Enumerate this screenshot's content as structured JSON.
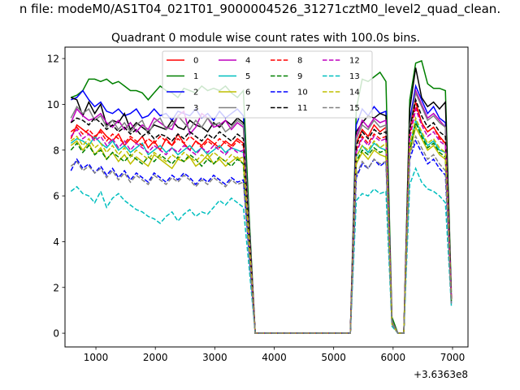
{
  "chart_data": {
    "type": "line",
    "suptitle": "n file: modeM0/AS1T04_021T01_9000004526_31271cztM0_level2_quad_clean.",
    "title": "Quadrant 0 module wise count rates with 100.0s bins.",
    "xlabel": "",
    "ylabel": "",
    "x_offset_label": "+3.6363e8",
    "xlim": [
      480,
      7260
    ],
    "ylim": [
      -0.6,
      12.5
    ],
    "xticks": [
      1000,
      2000,
      3000,
      4000,
      5000,
      6000,
      7000
    ],
    "yticks": [
      0,
      2,
      4,
      6,
      8,
      10,
      12
    ],
    "grid": false,
    "legend": {
      "placement": "top-center",
      "ncol": 4
    },
    "x": [
      580,
      680,
      780,
      880,
      980,
      1080,
      1180,
      1280,
      1380,
      1480,
      1580,
      1680,
      1780,
      1880,
      1980,
      2080,
      2180,
      2280,
      2380,
      2480,
      2580,
      2680,
      2780,
      2880,
      2980,
      3080,
      3180,
      3280,
      3380,
      3480,
      3580,
      3680,
      3780,
      3880,
      3980,
      4080,
      4180,
      4280,
      4380,
      4480,
      4580,
      4680,
      4780,
      4880,
      4980,
      5080,
      5180,
      5280,
      5380,
      5480,
      5580,
      5680,
      5780,
      5880,
      5980,
      6080,
      6180,
      6280,
      6380,
      6480,
      6580,
      6680,
      6780,
      6880,
      6980
    ],
    "series": [
      {
        "name": "0",
        "color": "#ff0000",
        "dash": "solid",
        "values": [
          8.5,
          9.1,
          8.9,
          8.7,
          8.5,
          8.9,
          8.6,
          8.4,
          8.7,
          8.2,
          8.5,
          8.3,
          8.6,
          8.1,
          8.4,
          8.0,
          8.5,
          8.2,
          8.7,
          8.3,
          8.0,
          8.4,
          8.2,
          8.5,
          8.3,
          8.1,
          8.4,
          8.2,
          8.5,
          8.3,
          4.5,
          0,
          0,
          0,
          0,
          0,
          0,
          0,
          0,
          0,
          0,
          0,
          0,
          0,
          0,
          0,
          0,
          0,
          8.3,
          8.9,
          8.6,
          9.1,
          8.8,
          9.0,
          0.4,
          0,
          0,
          9.0,
          10.1,
          9.2,
          8.8,
          9.0,
          8.6,
          8.3,
          1.6
        ]
      },
      {
        "name": "1",
        "color": "#008000",
        "dash": "solid",
        "values": [
          10.3,
          10.4,
          10.6,
          11.1,
          11.1,
          11.0,
          11.1,
          10.9,
          11.0,
          10.8,
          10.6,
          10.6,
          10.5,
          10.2,
          10.5,
          10.8,
          10.6,
          10.5,
          10.3,
          10.7,
          10.6,
          10.5,
          10.8,
          10.6,
          10.7,
          10.6,
          10.8,
          10.5,
          10.3,
          10.6,
          5.0,
          0,
          0,
          0,
          0,
          0,
          0,
          0,
          0,
          0,
          0,
          0,
          0,
          0,
          0,
          0,
          0,
          0,
          9.8,
          11.1,
          11.0,
          11.2,
          11.4,
          11.0,
          0.7,
          0,
          0,
          10.2,
          11.8,
          11.9,
          10.9,
          10.7,
          10.7,
          10.6,
          1.8
        ]
      },
      {
        "name": "2",
        "color": "#0000ff",
        "dash": "solid",
        "values": [
          10.2,
          10.3,
          10.6,
          10.2,
          9.9,
          10.1,
          9.7,
          9.6,
          9.8,
          9.5,
          9.6,
          9.8,
          9.4,
          9.5,
          9.8,
          9.5,
          9.6,
          9.3,
          9.7,
          9.6,
          9.5,
          9.8,
          9.4,
          9.6,
          9.3,
          9.7,
          9.4,
          9.6,
          9.8,
          9.5,
          4.6,
          0,
          0,
          0,
          0,
          0,
          0,
          0,
          0,
          0,
          0,
          0,
          0,
          0,
          0,
          0,
          0,
          0,
          9.1,
          9.8,
          9.5,
          9.9,
          9.6,
          9.7,
          0.5,
          0,
          0,
          9.3,
          10.8,
          10.2,
          9.6,
          9.9,
          9.4,
          9.2,
          1.6
        ]
      },
      {
        "name": "3",
        "color": "#000000",
        "dash": "solid",
        "values": [
          10.3,
          10.2,
          9.5,
          10.1,
          9.6,
          10.0,
          9.1,
          9.3,
          9.2,
          9.6,
          8.9,
          9.2,
          9.0,
          8.8,
          9.1,
          9.0,
          8.9,
          9.3,
          9.0,
          8.9,
          9.3,
          9.1,
          9.0,
          8.8,
          9.2,
          9.0,
          9.3,
          9.1,
          9.4,
          9.2,
          4.6,
          0,
          0,
          0,
          0,
          0,
          0,
          0,
          0,
          0,
          0,
          0,
          0,
          0,
          0,
          0,
          0,
          0,
          8.8,
          9.2,
          9.5,
          9.4,
          9.6,
          9.5,
          0.5,
          0,
          0,
          9.8,
          11.6,
          10.3,
          9.9,
          10.1,
          9.8,
          10.1,
          1.5
        ]
      },
      {
        "name": "4",
        "color": "#bf00bf",
        "dash": "solid",
        "values": [
          9.2,
          9.8,
          9.5,
          9.3,
          9.4,
          9.6,
          9.2,
          9.0,
          9.3,
          8.9,
          9.2,
          8.8,
          9.1,
          8.9,
          9.4,
          9.2,
          9.0,
          8.9,
          9.5,
          9.7,
          8.7,
          9.0,
          9.6,
          9.4,
          9.0,
          9.1,
          9.3,
          8.9,
          9.2,
          9.0,
          4.5,
          0,
          0,
          0,
          0,
          0,
          0,
          0,
          0,
          0,
          0,
          0,
          0,
          0,
          0,
          0,
          0,
          0,
          8.6,
          9.3,
          9.0,
          9.4,
          9.2,
          9.3,
          0.5,
          0,
          0,
          9.0,
          10.6,
          10.0,
          9.4,
          9.6,
          9.3,
          9.0,
          1.5
        ]
      },
      {
        "name": "5",
        "color": "#00bfbf",
        "dash": "solid",
        "values": [
          8.3,
          8.5,
          8.4,
          8.2,
          8.6,
          8.3,
          8.1,
          8.4,
          8.0,
          8.2,
          7.9,
          8.1,
          8.3,
          7.8,
          8.0,
          8.2,
          7.9,
          8.1,
          7.8,
          8.0,
          8.2,
          7.9,
          8.1,
          7.8,
          8.0,
          8.2,
          7.9,
          8.1,
          8.0,
          7.9,
          4.0,
          0,
          0,
          0,
          0,
          0,
          0,
          0,
          0,
          0,
          0,
          0,
          0,
          0,
          0,
          0,
          0,
          0,
          7.7,
          8.2,
          7.9,
          8.3,
          8.1,
          8.0,
          0.4,
          0,
          0,
          8.1,
          9.3,
          8.7,
          8.2,
          8.4,
          8.0,
          7.9,
          1.4
        ]
      },
      {
        "name": "6",
        "color": "#bfbf00",
        "dash": "solid",
        "values": [
          8.2,
          8.4,
          8.0,
          8.3,
          7.8,
          8.1,
          7.6,
          7.9,
          7.5,
          7.8,
          7.4,
          7.7,
          7.5,
          7.3,
          7.8,
          7.6,
          7.4,
          7.2,
          7.6,
          7.5,
          7.7,
          7.3,
          7.5,
          7.8,
          7.4,
          7.6,
          7.3,
          7.5,
          7.7,
          7.4,
          3.8,
          0,
          0,
          0,
          0,
          0,
          0,
          0,
          0,
          0,
          0,
          0,
          0,
          0,
          0,
          0,
          0,
          0,
          7.4,
          7.9,
          7.6,
          8.0,
          7.8,
          7.7,
          0.4,
          0,
          0,
          7.9,
          9.0,
          8.5,
          8.0,
          8.2,
          7.8,
          7.6,
          1.4
        ]
      },
      {
        "name": "7",
        "color": "#808080",
        "dash": "solid",
        "values": [
          9.4,
          9.9,
          9.6,
          9.8,
          9.3,
          9.5,
          9.0,
          9.3,
          8.9,
          9.2,
          8.8,
          9.1,
          9.3,
          8.7,
          9.2,
          9.4,
          8.9,
          9.1,
          9.5,
          9.2,
          8.9,
          9.3,
          9.0,
          9.4,
          9.1,
          9.2,
          8.8,
          9.0,
          9.3,
          9.1,
          4.5,
          0,
          0,
          0,
          0,
          0,
          0,
          0,
          0,
          0,
          0,
          0,
          0,
          0,
          0,
          0,
          0,
          0,
          8.5,
          9.1,
          8.9,
          9.3,
          9.0,
          9.1,
          0.5,
          0,
          0,
          9.1,
          10.5,
          9.9,
          9.3,
          9.5,
          9.2,
          9.0,
          1.5
        ]
      },
      {
        "name": "8",
        "color": "#ff0000",
        "dash": "dashed",
        "values": [
          8.8,
          9.0,
          8.7,
          8.9,
          8.6,
          8.8,
          8.4,
          8.7,
          8.5,
          8.3,
          8.6,
          8.4,
          8.2,
          8.5,
          8.3,
          8.6,
          8.4,
          8.2,
          8.5,
          8.3,
          8.6,
          8.4,
          8.1,
          8.4,
          8.2,
          8.5,
          8.3,
          8.1,
          8.4,
          8.2,
          4.2,
          0,
          0,
          0,
          0,
          0,
          0,
          0,
          0,
          0,
          0,
          0,
          0,
          0,
          0,
          0,
          0,
          0,
          8.0,
          8.6,
          8.3,
          8.7,
          8.5,
          8.6,
          0.4,
          0,
          0,
          8.7,
          9.9,
          9.2,
          8.8,
          9.0,
          8.5,
          8.3,
          1.5
        ]
      },
      {
        "name": "9",
        "color": "#008000",
        "dash": "dashed",
        "values": [
          8.0,
          8.3,
          7.9,
          8.2,
          7.8,
          8.0,
          7.6,
          7.9,
          7.7,
          7.5,
          7.8,
          7.6,
          7.4,
          7.7,
          7.5,
          7.8,
          7.6,
          7.4,
          7.7,
          7.5,
          7.8,
          7.6,
          7.3,
          7.6,
          7.4,
          7.7,
          7.5,
          7.3,
          7.6,
          7.4,
          3.8,
          0,
          0,
          0,
          0,
          0,
          0,
          0,
          0,
          0,
          0,
          0,
          0,
          0,
          0,
          0,
          0,
          0,
          7.5,
          8.0,
          7.8,
          8.1,
          7.9,
          8.0,
          0.4,
          0,
          0,
          8.0,
          9.2,
          8.6,
          8.1,
          8.3,
          7.9,
          7.7,
          1.4
        ]
      },
      {
        "name": "10",
        "color": "#0000ff",
        "dash": "dashed",
        "values": [
          7.1,
          7.6,
          7.2,
          7.4,
          7.0,
          7.3,
          6.9,
          7.2,
          6.8,
          7.1,
          6.7,
          7.0,
          6.8,
          6.6,
          7.0,
          6.8,
          6.6,
          6.9,
          6.7,
          7.0,
          6.8,
          6.5,
          6.8,
          6.6,
          6.9,
          6.7,
          6.5,
          6.8,
          6.6,
          6.7,
          3.4,
          0,
          0,
          0,
          0,
          0,
          0,
          0,
          0,
          0,
          0,
          0,
          0,
          0,
          0,
          0,
          0,
          0,
          6.8,
          7.4,
          7.2,
          7.6,
          7.3,
          7.5,
          0.4,
          0,
          0,
          7.6,
          8.4,
          7.9,
          7.4,
          7.6,
          7.2,
          6.9,
          1.3
        ]
      },
      {
        "name": "11",
        "color": "#000000",
        "dash": "dashed",
        "values": [
          9.2,
          9.4,
          9.3,
          9.1,
          9.4,
          9.2,
          8.9,
          9.1,
          8.8,
          9.0,
          8.7,
          8.9,
          8.6,
          8.8,
          8.5,
          8.7,
          8.6,
          8.4,
          8.7,
          8.5,
          8.8,
          8.6,
          8.4,
          8.7,
          8.5,
          8.8,
          8.6,
          8.4,
          8.7,
          8.5,
          4.3,
          0,
          0,
          0,
          0,
          0,
          0,
          0,
          0,
          0,
          0,
          0,
          0,
          0,
          0,
          0,
          0,
          0,
          8.2,
          8.8,
          8.5,
          8.9,
          8.7,
          8.8,
          0.4,
          0,
          0,
          8.9,
          10.2,
          9.5,
          9.0,
          9.2,
          8.8,
          8.6,
          1.5
        ]
      },
      {
        "name": "12",
        "color": "#bf00bf",
        "dash": "dashed",
        "values": [
          8.6,
          8.9,
          8.5,
          8.7,
          8.4,
          8.6,
          8.2,
          8.5,
          8.1,
          8.4,
          8.0,
          8.3,
          8.1,
          7.9,
          8.2,
          8.0,
          7.8,
          8.1,
          7.9,
          8.2,
          8.0,
          7.8,
          8.1,
          7.9,
          8.2,
          8.0,
          7.8,
          8.1,
          7.9,
          8.0,
          4.0,
          0,
          0,
          0,
          0,
          0,
          0,
          0,
          0,
          0,
          0,
          0,
          0,
          0,
          0,
          0,
          0,
          0,
          7.9,
          8.5,
          8.2,
          8.6,
          8.4,
          8.5,
          0.4,
          0,
          0,
          8.5,
          9.8,
          9.1,
          8.6,
          8.8,
          8.4,
          8.2,
          1.5
        ]
      },
      {
        "name": "13",
        "color": "#00bfbf",
        "dash": "dashed",
        "values": [
          6.2,
          6.4,
          6.1,
          6.0,
          5.7,
          6.2,
          5.5,
          5.9,
          6.1,
          5.8,
          5.6,
          5.4,
          5.3,
          5.1,
          5.0,
          4.8,
          5.1,
          5.3,
          4.9,
          5.2,
          5.4,
          5.1,
          5.3,
          5.2,
          5.5,
          5.8,
          5.6,
          5.9,
          5.7,
          5.5,
          2.8,
          0,
          0,
          0,
          0,
          0,
          0,
          0,
          0,
          0,
          0,
          0,
          0,
          0,
          0,
          0,
          0,
          0,
          5.8,
          6.1,
          6.0,
          6.3,
          6.1,
          6.2,
          0.3,
          0,
          0,
          6.5,
          7.2,
          6.6,
          6.3,
          6.2,
          6.0,
          5.7,
          1.2
        ]
      },
      {
        "name": "14",
        "color": "#bfbf00",
        "dash": "dashed",
        "values": [
          8.4,
          8.6,
          8.2,
          8.5,
          8.1,
          8.3,
          7.9,
          8.2,
          7.8,
          8.1,
          7.7,
          8.0,
          7.8,
          7.6,
          7.9,
          7.7,
          7.5,
          7.8,
          7.6,
          7.9,
          7.7,
          7.5,
          7.8,
          7.6,
          7.9,
          7.7,
          7.5,
          7.8,
          7.6,
          7.7,
          3.9,
          0,
          0,
          0,
          0,
          0,
          0,
          0,
          0,
          0,
          0,
          0,
          0,
          0,
          0,
          0,
          0,
          0,
          7.7,
          8.2,
          8.0,
          8.4,
          8.1,
          8.3,
          0.4,
          0,
          0,
          8.2,
          9.4,
          8.8,
          8.3,
          8.5,
          8.1,
          7.9,
          1.4
        ]
      },
      {
        "name": "15",
        "color": "#808080",
        "dash": "dashed",
        "values": [
          7.3,
          7.5,
          7.1,
          7.3,
          7.0,
          7.2,
          6.8,
          7.1,
          6.7,
          7.0,
          6.6,
          6.9,
          6.7,
          6.5,
          6.9,
          6.7,
          6.5,
          6.8,
          6.6,
          6.9,
          6.7,
          6.4,
          6.7,
          6.5,
          6.8,
          6.6,
          6.4,
          6.7,
          6.5,
          6.6,
          3.3,
          0,
          0,
          0,
          0,
          0,
          0,
          0,
          0,
          0,
          0,
          0,
          0,
          0,
          0,
          0,
          0,
          0,
          6.9,
          7.5,
          7.2,
          7.6,
          7.4,
          7.5,
          0.4,
          0,
          0,
          7.8,
          8.6,
          8.1,
          7.6,
          7.8,
          7.4,
          7.1,
          1.3
        ]
      }
    ]
  }
}
